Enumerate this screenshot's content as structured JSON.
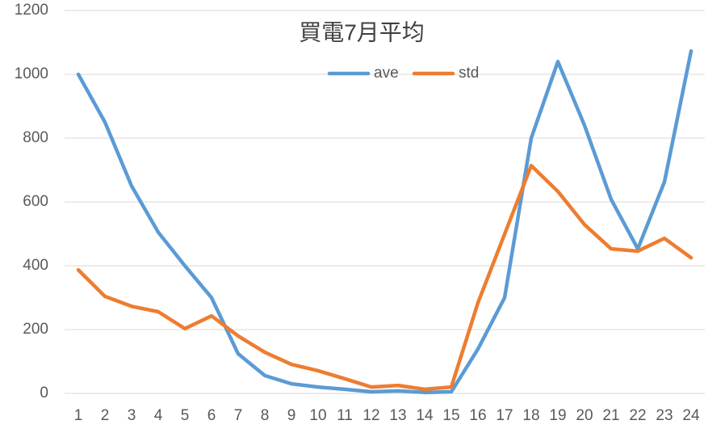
{
  "chart_data": {
    "type": "line",
    "title": "買電7月平均",
    "categories": [
      "1",
      "2",
      "3",
      "4",
      "5",
      "6",
      "7",
      "8",
      "9",
      "10",
      "11",
      "12",
      "13",
      "14",
      "15",
      "16",
      "17",
      "18",
      "19",
      "20",
      "21",
      "22",
      "23",
      "24"
    ],
    "series": [
      {
        "name": "ave",
        "color": "#5b9bd5",
        "values": [
          1000,
          850,
          650,
          505,
          400,
          300,
          124,
          56,
          30,
          20,
          13,
          5,
          8,
          3,
          5,
          139,
          300,
          800,
          1040,
          840,
          608,
          453,
          663,
          1073
        ]
      },
      {
        "name": "std",
        "color": "#ed7d31",
        "values": [
          387,
          304,
          273,
          256,
          203,
          243,
          180,
          129,
          91,
          71,
          46,
          20,
          25,
          13,
          20,
          284,
          499,
          714,
          633,
          529,
          453,
          446,
          486,
          425
        ]
      }
    ],
    "ylim": [
      0,
      1200
    ],
    "yticks": [
      0,
      200,
      400,
      600,
      800,
      1000,
      1200
    ],
    "grid": true,
    "legend": "top"
  }
}
